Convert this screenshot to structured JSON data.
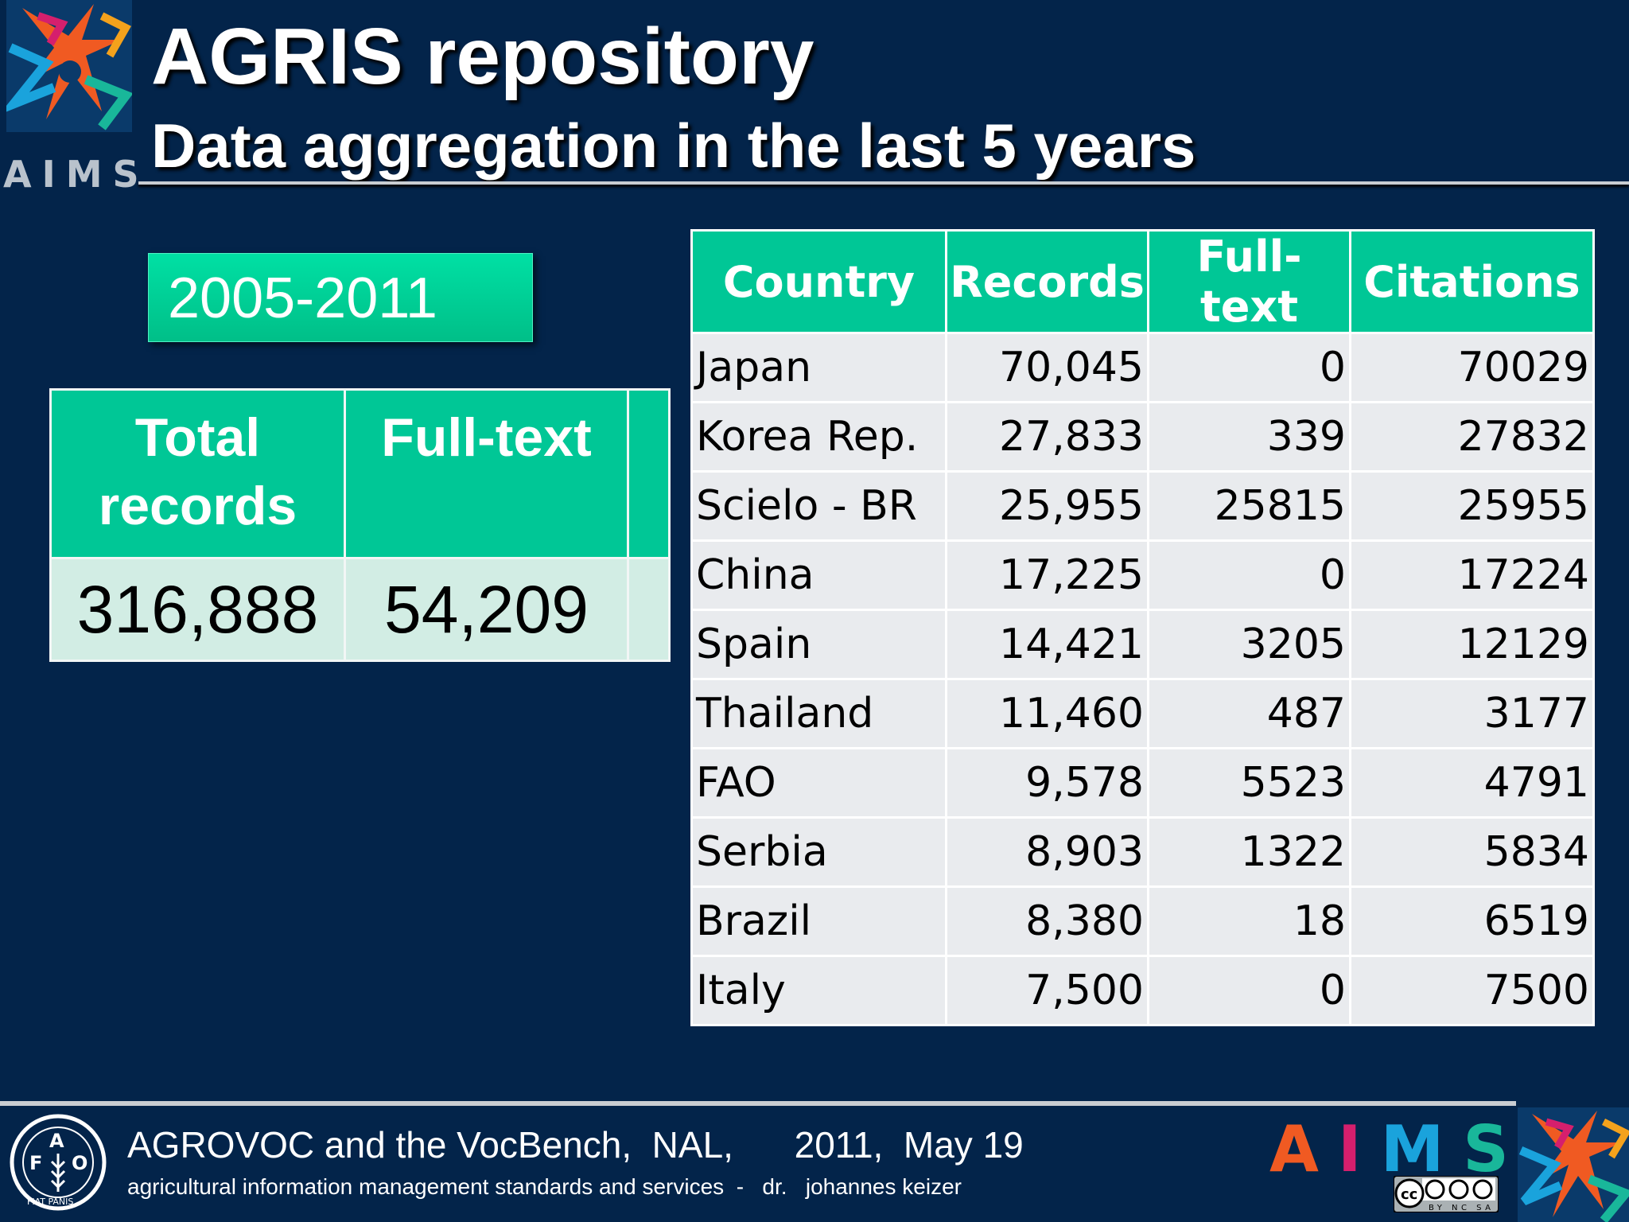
{
  "header": {
    "aims_label": "AIMS",
    "title": "AGRIS repository",
    "subtitle": "Data aggregation in the last 5 years"
  },
  "period": "2005-2011",
  "summary": {
    "headers": [
      "Total records",
      "Full-text"
    ],
    "values": [
      "316,888",
      "54,209"
    ]
  },
  "country_table": {
    "headers": [
      "Country",
      "Records",
      "Full-text",
      "Citations"
    ],
    "rows": [
      [
        "Japan",
        "70,045",
        "0",
        "70029"
      ],
      [
        "Korea Rep.",
        "27,833",
        "339",
        "27832"
      ],
      [
        "Scielo - BR",
        "25,955",
        "25815",
        "25955"
      ],
      [
        "China",
        "17,225",
        "0",
        "17224"
      ],
      [
        "Spain",
        "14,421",
        "3205",
        "12129"
      ],
      [
        "Thailand",
        "11,460",
        "487",
        "3177"
      ],
      [
        "FAO",
        "9,578",
        "5523",
        "4791"
      ],
      [
        "Serbia",
        "8,903",
        "1322",
        "5834"
      ],
      [
        "Brazil",
        "8,380",
        "18",
        "6519"
      ],
      [
        "Italy",
        "7,500",
        "0",
        "7500"
      ]
    ]
  },
  "footer": {
    "line1": "AGROVOC and the VocBench,  NAL,      2011,  May 19",
    "line2": "agricultural information management standards and services  -   dr.   johannes keizer",
    "aims_letters": [
      "A",
      "I",
      "M",
      "S"
    ],
    "fao_logo_text": "FIAT PANIS",
    "cc_label": "BY NC SA"
  },
  "colors": {
    "background": "#03244a",
    "table_header": "#00c796",
    "aims_a": "#f05a22",
    "aims_i": "#d51f6d",
    "aims_m": "#1aa3dc",
    "aims_s": "#19b79a"
  }
}
